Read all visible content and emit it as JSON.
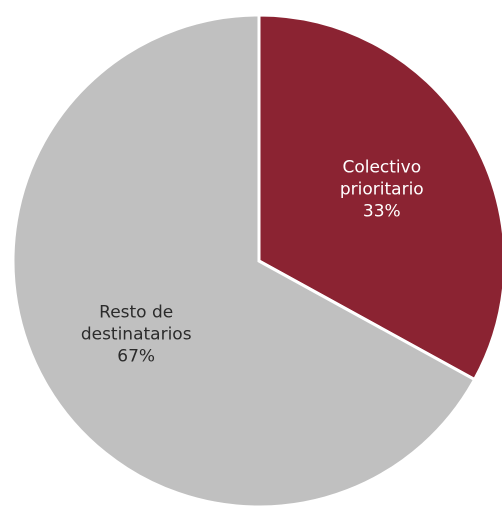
{
  "chart_data": {
    "type": "pie",
    "slices": [
      {
        "label": "Colectivo prioritario",
        "label_lines": [
          "Colectivo",
          "prioritario"
        ],
        "value": 33,
        "value_label": "33%",
        "color": "#8b2332",
        "text_color": "#ffffff"
      },
      {
        "label": "Resto de destinatarios",
        "label_lines": [
          "Resto de",
          "destinatarios"
        ],
        "value": 67,
        "value_label": "67%",
        "color": "#c0c0c0",
        "text_color": "#2b2b2b"
      }
    ],
    "start_position": "12 o'clock",
    "direction": "clockwise",
    "legend": "none"
  }
}
